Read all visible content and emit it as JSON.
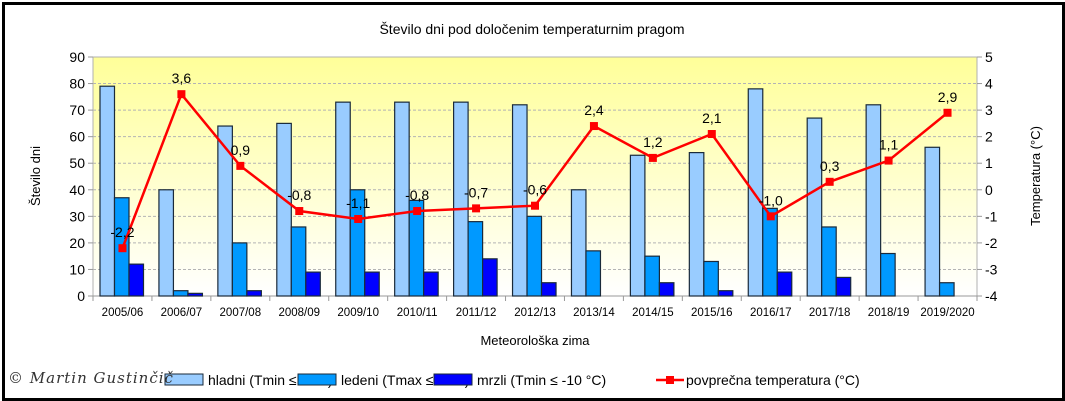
{
  "chart_data": {
    "type": "bar",
    "title": "Število dni pod določenim temperaturnim pragom",
    "xlabel": "Meteorološka zima",
    "ylabel": "Število dni",
    "y2label": "Temperatura (°C)",
    "ylim": [
      0,
      90
    ],
    "y2lim": [
      -4,
      5
    ],
    "yticks": [
      "0",
      "10",
      "20",
      "30",
      "40",
      "50",
      "60",
      "70",
      "80",
      "90"
    ],
    "y2ticks": [
      "-4",
      "-3",
      "-2",
      "-1",
      "0",
      "1",
      "2",
      "3",
      "4",
      "5"
    ],
    "grid": true,
    "legend_position": "bottom",
    "categories": [
      "2005/06",
      "2006/07",
      "2007/08",
      "2008/09",
      "2009/10",
      "2010/11",
      "2011/12",
      "2012/13",
      "2013/14",
      "2014/15",
      "2015/16",
      "2016/17",
      "2017/18",
      "2018/19",
      "2019/2020"
    ],
    "series": [
      {
        "name": "hladni (Tmin ≤ 0 °C)",
        "type": "bar",
        "color": "#99ccff",
        "values": [
          79,
          40,
          64,
          65,
          73,
          73,
          73,
          72,
          40,
          53,
          54,
          78,
          67,
          72,
          56
        ]
      },
      {
        "name": "ledeni (Tmax ≤ 0 °C)",
        "type": "bar",
        "color": "#0099ff",
        "values": [
          37,
          2,
          20,
          26,
          40,
          36,
          28,
          30,
          17,
          15,
          13,
          33,
          26,
          16,
          5
        ]
      },
      {
        "name": "mrzli (Tmin ≤ -10 °C)",
        "type": "bar",
        "color": "#0000ff",
        "values": [
          12,
          1,
          2,
          9,
          9,
          9,
          14,
          5,
          0,
          5,
          2,
          9,
          7,
          0,
          0
        ]
      },
      {
        "name": "povprečna temperatura (°C)",
        "type": "line",
        "axis": "right",
        "color": "#ff0000",
        "values": [
          -2.2,
          3.6,
          0.9,
          -0.8,
          -1.1,
          -0.8,
          -0.7,
          -0.6,
          2.4,
          1.2,
          2.1,
          -1.0,
          0.3,
          1.1,
          2.9
        ],
        "labels": [
          "-2,2",
          "3,6",
          "0,9",
          "-0,8",
          "-1,1",
          "-0,8",
          "-0,7",
          "-0,6",
          "2,4",
          "1,2",
          "2,1",
          "-1,0",
          "0,3",
          "1,1",
          "2,9"
        ]
      }
    ]
  },
  "copyright": "© Martin Gustinčič"
}
